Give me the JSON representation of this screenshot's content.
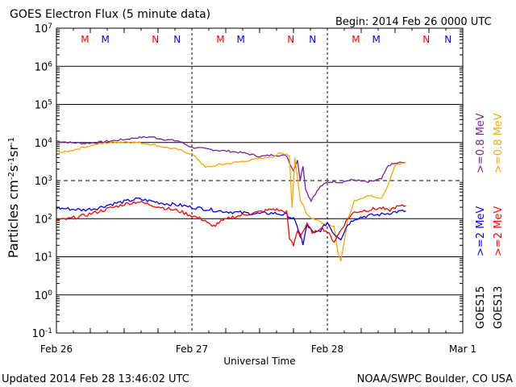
{
  "header": {
    "title": "GOES Electron Flux (5 minute data)",
    "begin": "Begin: 2014 Feb 26 0000 UTC"
  },
  "footer": {
    "updated": "Updated 2014 Feb 28 13:46:02 UTC",
    "credit": "NOAA/SWPC Boulder, CO USA"
  },
  "chart_data": {
    "type": "line",
    "title": "GOES Electron Flux (5 minute data)",
    "xlabel": "Universal Time",
    "ylabel": "Particles cm-2s-1sr-1",
    "yscale": "log",
    "xlim": [
      0,
      3
    ],
    "ylim": [
      0.1,
      10000000
    ],
    "x_unit": "days since 2014 Feb 26 0000 UTC",
    "x_ticks": [
      {
        "x": 0,
        "label": "Feb 26"
      },
      {
        "x": 1,
        "label": "Feb 27"
      },
      {
        "x": 2,
        "label": "Feb 28"
      },
      {
        "x": 3,
        "label": "Mar 1"
      }
    ],
    "y_ticks": [
      {
        "value": 0.1,
        "base": "10",
        "exp": "-1"
      },
      {
        "value": 1,
        "base": "10",
        "exp": "0"
      },
      {
        "value": 10,
        "base": "10",
        "exp": "1"
      },
      {
        "value": 100,
        "base": "10",
        "exp": "2"
      },
      {
        "value": 1000,
        "base": "10",
        "exp": "3"
      },
      {
        "value": 10000,
        "base": "10",
        "exp": "4"
      },
      {
        "value": 100000,
        "base": "10",
        "exp": "5"
      },
      {
        "value": 1000000,
        "base": "10",
        "exp": "6"
      },
      {
        "value": 10000000,
        "base": "10",
        "exp": "7"
      }
    ],
    "threshold": {
      "value": 1000,
      "style": "dashed"
    },
    "grid": "horizontal",
    "legend": {
      "placement": "right-vertical",
      "entries": [
        {
          "text": ">=0.8 MeV",
          "color": "#7a1fa2"
        },
        {
          "text": ">=0.8 MeV",
          "color": "#ffa500"
        },
        {
          "text": ">=2 MeV",
          "color": "#0000ff"
        },
        {
          "text": ">=2 MeV",
          "color": "#ff0000"
        },
        {
          "text": "GOES15",
          "color": "#000000"
        },
        {
          "text": "GOES13",
          "color": "#000000"
        }
      ]
    },
    "mn_markers": [
      {
        "x": 0.33,
        "label": "M",
        "color": "#ff0000"
      },
      {
        "x": 0.48,
        "label": "M",
        "color": "#0000ff"
      },
      {
        "x": 0.85,
        "label": "N",
        "color": "#ff0000"
      },
      {
        "x": 1.01,
        "label": "N",
        "color": "#0000ff"
      },
      {
        "x": 1.33,
        "label": "M",
        "color": "#ff0000"
      },
      {
        "x": 1.48,
        "label": "M",
        "color": "#0000ff"
      },
      {
        "x": 1.85,
        "label": "N",
        "color": "#ff0000"
      },
      {
        "x": 2.01,
        "label": "N",
        "color": "#0000ff"
      },
      {
        "x": 2.33,
        "label": "M",
        "color": "#ff0000"
      },
      {
        "x": 2.48,
        "label": "M",
        "color": "#0000ff"
      },
      {
        "x": 2.85,
        "label": "N",
        "color": "#ff0000"
      },
      {
        "x": 3.01,
        "label": "N",
        "color": "#0000ff"
      }
    ],
    "series": [
      {
        "name": ">=0.8 MeV GOES15",
        "color": "#7a1fa2",
        "x": [
          0,
          0.1,
          0.2,
          0.3,
          0.4,
          0.5,
          0.6,
          0.7,
          0.8,
          0.9,
          1.0,
          1.1,
          1.2,
          1.3,
          1.4,
          1.5,
          1.6,
          1.7,
          1.72,
          1.75,
          1.78,
          1.8,
          1.82,
          1.84,
          1.86,
          1.88,
          1.9,
          1.95,
          2.0,
          2.05,
          2.1,
          2.15,
          2.2,
          2.3,
          2.35,
          2.4,
          2.45,
          2.5,
          2.55,
          2.58
        ],
        "values": [
          11000,
          10000,
          9500,
          10000,
          11000,
          12000,
          13500,
          14000,
          12000,
          11000,
          7500,
          6800,
          6200,
          5800,
          5200,
          4300,
          4700,
          4500,
          3000,
          1800,
          3500,
          1000,
          2500,
          600,
          400,
          300,
          400,
          700,
          900,
          950,
          900,
          1000,
          1050,
          900,
          1000,
          1100,
          2500,
          2800,
          3000,
          3000
        ]
      },
      {
        "name": ">=0.8 MeV GOES13",
        "color": "#ffa500",
        "x": [
          0,
          0.05,
          0.1,
          0.2,
          0.3,
          0.4,
          0.5,
          0.6,
          0.7,
          0.8,
          0.9,
          1.0,
          1.05,
          1.1,
          1.2,
          1.3,
          1.4,
          1.5,
          1.6,
          1.65,
          1.7,
          1.72,
          1.74,
          1.76,
          1.78,
          1.8,
          1.82,
          1.84,
          1.86,
          1.9,
          1.95,
          2.0,
          2.05,
          2.08,
          2.1,
          2.12,
          2.15,
          2.2,
          2.25,
          2.3,
          2.35,
          2.4,
          2.45,
          2.5,
          2.55,
          2.58
        ],
        "values": [
          6000,
          5500,
          6000,
          7500,
          9000,
          10000,
          10500,
          10000,
          9000,
          7500,
          6500,
          5000,
          3500,
          2200,
          2600,
          2900,
          3300,
          3800,
          4300,
          5200,
          5000,
          4500,
          200,
          4000,
          1200,
          300,
          250,
          150,
          120,
          100,
          80,
          70,
          60,
          12,
          8,
          20,
          90,
          300,
          350,
          400,
          380,
          350,
          800,
          2500,
          2800,
          3000
        ]
      },
      {
        "name": ">=2 MeV GOES15",
        "color": "#0000ff",
        "x": [
          0,
          0.1,
          0.2,
          0.3,
          0.4,
          0.5,
          0.6,
          0.7,
          0.8,
          0.9,
          1.0,
          1.1,
          1.2,
          1.3,
          1.4,
          1.5,
          1.6,
          1.7,
          1.75,
          1.8,
          1.82,
          1.85,
          1.9,
          1.95,
          2.0,
          2.05,
          2.1,
          2.15,
          2.2,
          2.3,
          2.4,
          2.5,
          2.58
        ],
        "values": [
          190,
          180,
          170,
          190,
          240,
          280,
          330,
          290,
          250,
          230,
          200,
          180,
          160,
          150,
          140,
          135,
          140,
          125,
          100,
          40,
          20,
          70,
          40,
          50,
          80,
          40,
          30,
          70,
          100,
          120,
          130,
          150,
          160
        ]
      },
      {
        "name": ">=2 MeV GOES13",
        "color": "#ff0000",
        "x": [
          0,
          0.1,
          0.2,
          0.3,
          0.4,
          0.5,
          0.6,
          0.7,
          0.8,
          0.9,
          1.0,
          1.1,
          1.15,
          1.2,
          1.3,
          1.4,
          1.5,
          1.6,
          1.7,
          1.72,
          1.75,
          1.78,
          1.8,
          1.85,
          1.9,
          1.95,
          2.0,
          2.05,
          2.1,
          2.15,
          2.2,
          2.3,
          2.35,
          2.4,
          2.45,
          2.5,
          2.58
        ],
        "values": [
          90,
          100,
          120,
          150,
          190,
          240,
          280,
          230,
          190,
          160,
          120,
          90,
          60,
          80,
          110,
          130,
          150,
          180,
          150,
          30,
          20,
          50,
          35,
          70,
          40,
          60,
          45,
          25,
          50,
          100,
          150,
          170,
          180,
          190,
          160,
          200,
          220
        ]
      }
    ]
  }
}
